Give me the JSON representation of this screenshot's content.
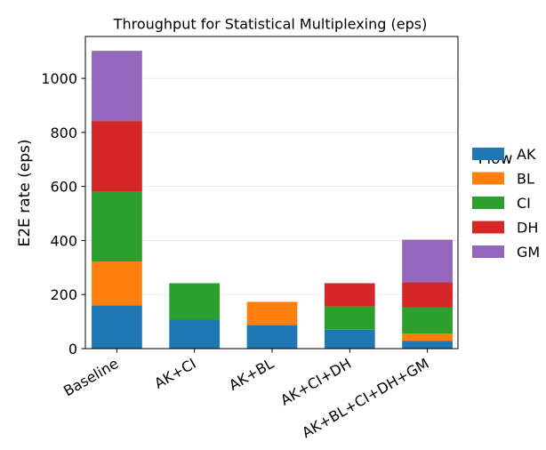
{
  "chart_data": {
    "type": "bar",
    "stacked": true,
    "title": "Throughput for Statistical Multiplexing (eps)",
    "xlabel": "",
    "ylabel": "E2E rate (eps)",
    "categories": [
      "Baseline",
      "AK+CI",
      "AK+BL",
      "AK+CI+DH",
      "AK+BL+CI+DH+GM"
    ],
    "series": [
      {
        "name": "AK",
        "color": "#1f77b4",
        "values": [
          160,
          107,
          87,
          70,
          28
        ]
      },
      {
        "name": "BL",
        "color": "#ff7f0e",
        "values": [
          162,
          0,
          86,
          0,
          28
        ]
      },
      {
        "name": "CI",
        "color": "#2ca02c",
        "values": [
          258,
          135,
          0,
          86,
          97
        ]
      },
      {
        "name": "DH",
        "color": "#d62728",
        "values": [
          262,
          0,
          0,
          86,
          92
        ]
      },
      {
        "name": "GM",
        "color": "#9467bd",
        "values": [
          260,
          0,
          0,
          0,
          158
        ]
      }
    ],
    "ylim": [
      0,
      1155
    ],
    "yticks": [
      0,
      200,
      400,
      600,
      800,
      1000
    ],
    "grid": "y",
    "legend": {
      "title": "Flow",
      "placement": "right, outside plot area"
    }
  }
}
